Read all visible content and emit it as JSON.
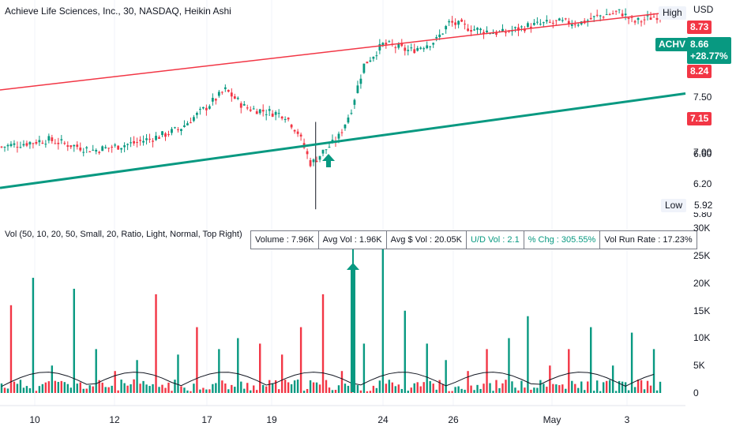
{
  "title": "Achieve Life Sciences, Inc., 30, NASDAQ, Heikin Ashi",
  "volume_legend": "Vol (50, 10, 20, 50, Small, 20, Ratio, Light, Normal, Top Right)",
  "stats": {
    "volume": "Volume : 7.96K",
    "avg_vol": "Avg Vol : 1.96K",
    "avg_dollar_vol": "Avg $ Vol : 20.05K",
    "ud_vol": "U/D Vol : 2.1",
    "pct_chg": "% Chg : 305.55%",
    "vol_run_rate": "Vol Run Rate : 17.23%"
  },
  "price_axis": {
    "currency": "USD",
    "ticks": [
      "7.50",
      "7.00",
      "6.60",
      "6.20",
      "5.80"
    ]
  },
  "volume_axis": {
    "ticks": [
      "30K",
      "25K",
      "20K",
      "15K",
      "10K",
      "5K",
      "0"
    ]
  },
  "time_axis": {
    "labels": [
      "10",
      "12",
      "17",
      "19",
      "24",
      "26",
      "May",
      "3"
    ]
  },
  "markers": {
    "high_label": "High",
    "high_value": "8.73",
    "low_label": "Low",
    "low_value": "5.92",
    "symbol": "ACHV",
    "last_price": "8.66",
    "change": "+28.77%",
    "red_tag_1": "8.24",
    "red_tag_2": "7.15"
  },
  "colors": {
    "up": "#089981",
    "down": "#f23645",
    "resistance_line": "#f23645",
    "support_line": "#089981",
    "avg_volume_line": "#131722"
  },
  "chart_data": [
    {
      "type": "candlestick",
      "title": "Achieve Life Sciences, Inc., 30, NASDAQ, Heikin Ashi",
      "y_unit": "USD",
      "x_labels": [
        "10",
        "12",
        "17",
        "19",
        "24",
        "26",
        "May",
        "3"
      ],
      "price_range": [
        5.8,
        8.9
      ],
      "high": 8.73,
      "low": 5.92,
      "last": 8.66,
      "change_pct": 28.77,
      "series": [
        {
          "x": 0,
          "close": 6.8
        },
        {
          "x": 0.07,
          "close": 6.9
        },
        {
          "x": 0.14,
          "close": 6.75
        },
        {
          "x": 0.2,
          "close": 6.85
        },
        {
          "x": 0.24,
          "close": 6.95
        },
        {
          "x": 0.27,
          "close": 7.05
        },
        {
          "x": 0.31,
          "close": 7.35
        },
        {
          "x": 0.34,
          "close": 7.6
        },
        {
          "x": 0.37,
          "close": 7.35
        },
        {
          "x": 0.4,
          "close": 7.3
        },
        {
          "x": 0.43,
          "close": 7.25
        },
        {
          "x": 0.45,
          "close": 7.0
        },
        {
          "x": 0.47,
          "close": 6.55
        },
        {
          "x": 0.49,
          "close": 6.75
        },
        {
          "x": 0.51,
          "close": 6.9
        },
        {
          "x": 0.53,
          "close": 7.3
        },
        {
          "x": 0.55,
          "close": 7.95
        },
        {
          "x": 0.58,
          "close": 8.25
        },
        {
          "x": 0.62,
          "close": 8.15
        },
        {
          "x": 0.66,
          "close": 8.3
        },
        {
          "x": 0.68,
          "close": 8.55
        },
        {
          "x": 0.72,
          "close": 8.45
        },
        {
          "x": 0.76,
          "close": 8.4
        },
        {
          "x": 0.8,
          "close": 8.5
        },
        {
          "x": 0.84,
          "close": 8.55
        },
        {
          "x": 0.88,
          "close": 8.55
        },
        {
          "x": 0.91,
          "close": 8.65
        },
        {
          "x": 0.94,
          "close": 8.7
        },
        {
          "x": 0.96,
          "close": 8.55
        },
        {
          "x": 1.0,
          "close": 8.66
        }
      ],
      "trendlines": [
        {
          "color": "red",
          "from": {
            "x": 0,
            "y": 7.6
          },
          "to": {
            "x": 1,
            "y": 8.72
          }
        },
        {
          "color": "green",
          "from": {
            "x": 0,
            "y": 6.22
          },
          "to": {
            "x": 1,
            "y": 7.55
          }
        }
      ]
    },
    {
      "type": "bar",
      "title": "Vol (50, 10, 20, 50, Small, 20, Ratio, Light, Normal, Top Right)",
      "y_range": [
        0,
        30000
      ],
      "y_ticks": [
        "30K",
        "25K",
        "20K",
        "15K",
        "10K",
        "5K",
        "0"
      ],
      "series": [
        {
          "name": "Volume",
          "spikes_k": [
            16,
            21,
            5,
            19,
            8,
            4,
            6,
            18,
            7,
            12,
            8,
            10,
            9,
            7,
            12,
            18,
            4,
            9,
            27,
            15,
            9,
            6,
            4,
            8,
            10,
            14,
            5,
            8,
            12,
            5,
            11,
            8
          ]
        }
      ]
    }
  ]
}
